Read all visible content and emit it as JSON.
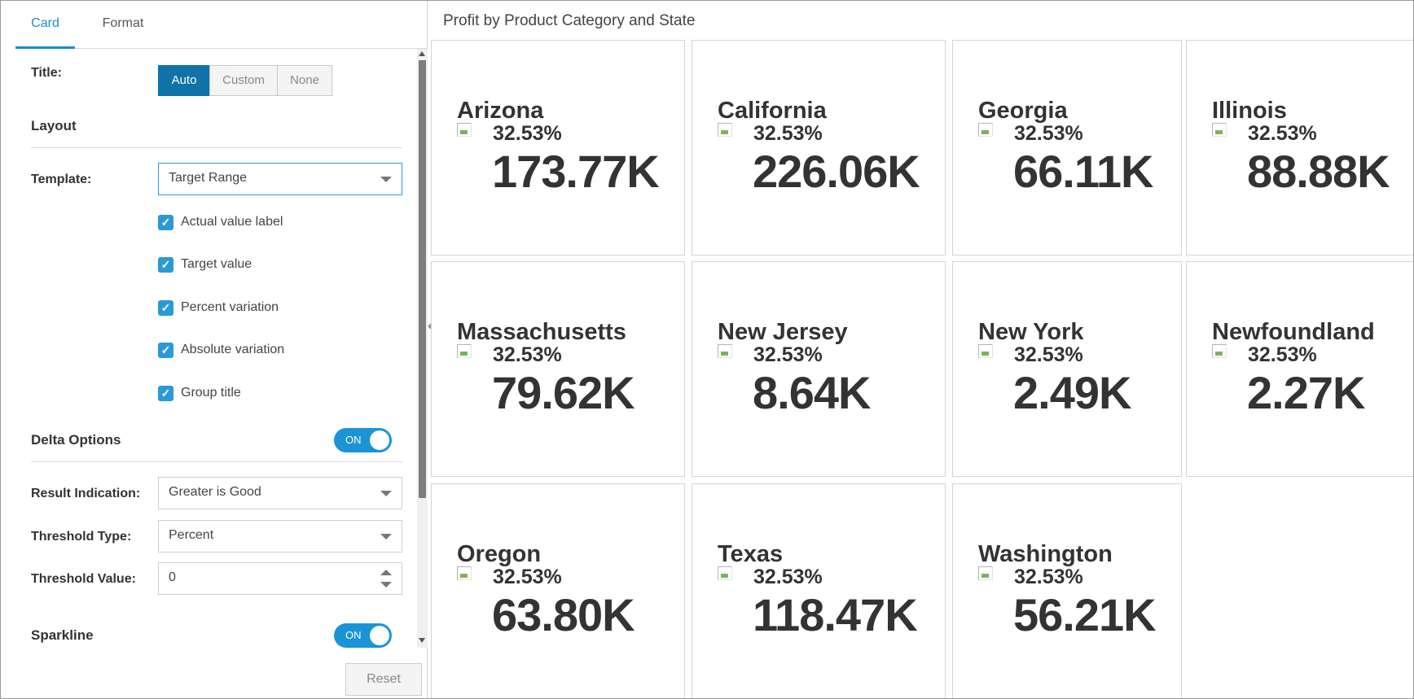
{
  "tabs": {
    "card": "Card",
    "format": "Format"
  },
  "settings": {
    "title_label": "Title:",
    "title_options": [
      "Auto",
      "Custom",
      "None"
    ],
    "layout_heading": "Layout",
    "template_label": "Template:",
    "template_value": "Target Range",
    "checkboxes": [
      {
        "label": "Actual value label",
        "checked": true
      },
      {
        "label": "Target value",
        "checked": true
      },
      {
        "label": "Percent variation",
        "checked": true
      },
      {
        "label": "Absolute variation",
        "checked": true
      },
      {
        "label": "Group title",
        "checked": true
      }
    ],
    "delta_heading": "Delta Options",
    "delta_toggle": "ON",
    "result_label": "Result Indication:",
    "result_value": "Greater is Good",
    "threshold_type_label": "Threshold Type:",
    "threshold_type_value": "Percent",
    "threshold_value_label": "Threshold Value:",
    "threshold_value": "0",
    "sparkline_heading": "Sparkline",
    "sparkline_toggle": "ON",
    "reset_label": "Reset"
  },
  "chart_title": "Profit by Product Category and State",
  "cards": [
    {
      "state": "Arizona",
      "percent": "32.53%",
      "value": "173.77K"
    },
    {
      "state": "California",
      "percent": "32.53%",
      "value": "226.06K"
    },
    {
      "state": "Georgia",
      "percent": "32.53%",
      "value": "66.11K"
    },
    {
      "state": "Illinois",
      "percent": "32.53%",
      "value": "88.88K"
    },
    {
      "state": "Massachusetts",
      "percent": "32.53%",
      "value": "79.62K"
    },
    {
      "state": "New Jersey",
      "percent": "32.53%",
      "value": "8.64K"
    },
    {
      "state": "New York",
      "percent": "32.53%",
      "value": "2.49K"
    },
    {
      "state": "Newfoundland",
      "percent": "32.53%",
      "value": "2.27K"
    },
    {
      "state": "Oregon",
      "percent": "32.53%",
      "value": "63.80K"
    },
    {
      "state": "Texas",
      "percent": "32.53%",
      "value": "118.47K"
    },
    {
      "state": "Washington",
      "percent": "32.53%",
      "value": "56.21K"
    }
  ],
  "icons": {
    "card_image": "broken-image-icon"
  },
  "colors": {
    "accent": "#1a8ccc",
    "active_segment": "#0f73a8",
    "toggle_on": "#1b94d6",
    "checkbox": "#2a9ad6"
  }
}
